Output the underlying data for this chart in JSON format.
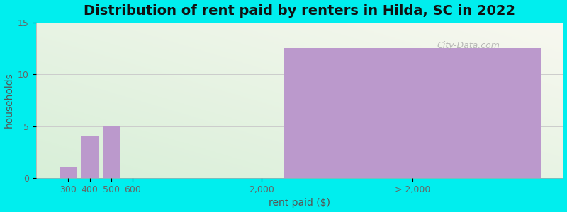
{
  "title": "Distribution of rent paid by renters in Hilda, SC in 2022",
  "xlabel": "rent paid ($)",
  "ylabel": "households",
  "figure_bg": "#00EEEE",
  "bar_color": "#bb99cc",
  "categories": [
    "300",
    "400",
    "500",
    "600",
    "2,000",
    "> 2,000"
  ],
  "values": [
    1,
    4,
    5,
    0,
    0,
    12.5
  ],
  "ylim": [
    0,
    15
  ],
  "yticks": [
    0,
    5,
    10,
    15
  ],
  "title_fontsize": 14,
  "axis_label_fontsize": 10,
  "tick_fontsize": 9,
  "watermark": "City-Data.com",
  "plot_bg_top": "#f8f8f0",
  "plot_bg_bottom": "#d8efd8",
  "grid_color": "#cccccc"
}
